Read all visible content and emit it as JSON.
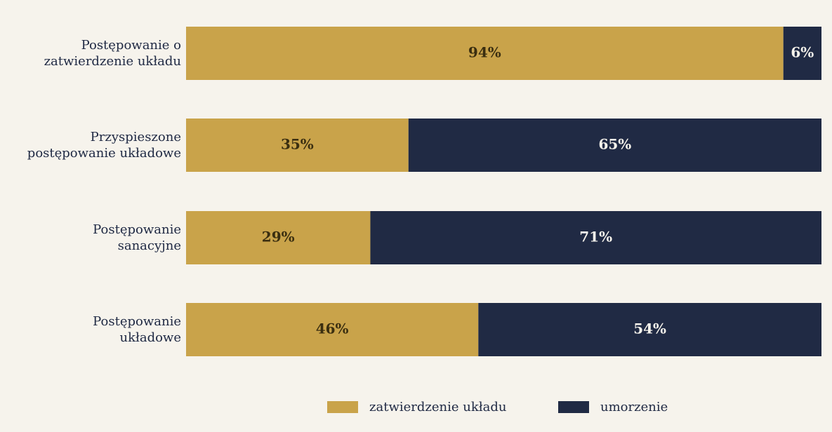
{
  "chart_data": {
    "type": "stacked-bar-horizontal",
    "categories": [
      "Postępowanie o\nzatwierdzenie układu",
      "Przyspieszone\npostępowanie układowe",
      "Postępowanie\nsanacyjne",
      "Postępowanie\nukładowe"
    ],
    "series": [
      {
        "name": "zatwierdzenie układu",
        "color": "#c9a34a",
        "label_color": "#3a2e10",
        "values": [
          94,
          35,
          29,
          46
        ],
        "value_labels": [
          "94%",
          "35%",
          "29%",
          "46%"
        ]
      },
      {
        "name": "umorzenie",
        "color": "#202a44",
        "label_color": "#f6f3ec",
        "values": [
          6,
          65,
          71,
          54
        ],
        "value_labels": [
          "6%",
          "65%",
          "71%",
          "54%"
        ]
      }
    ],
    "legend": "bottom"
  }
}
